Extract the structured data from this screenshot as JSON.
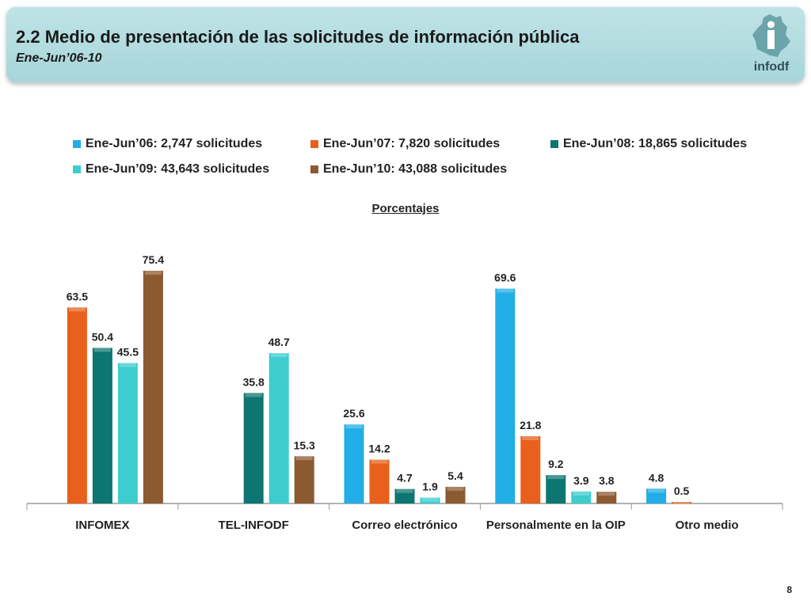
{
  "header": {
    "title": "2.2 Medio de presentación de las solicitudes de información pública",
    "subtitle": "Ene-Jun’06-10",
    "logo_text": "infodf"
  },
  "page_number": "8",
  "chart_data": {
    "type": "bar",
    "title": "Porcentajes",
    "xlabel": "",
    "ylabel": "",
    "ylim": [
      0,
      80
    ],
    "grid": false,
    "legend_position": "top",
    "categories": [
      "INFOMEX",
      "TEL-INFODF",
      "Correo electrónico",
      "Personalmente en la OIP",
      "Otro medio"
    ],
    "series": [
      {
        "name": "Ene-Jun’06: 2,747 solicitudes",
        "color": "#21aee6",
        "values": [
          null,
          null,
          25.6,
          69.6,
          4.8
        ]
      },
      {
        "name": "Ene-Jun’07: 7,820 solicitudes",
        "color": "#e8601c",
        "values": [
          63.5,
          null,
          14.2,
          21.8,
          0.5
        ]
      },
      {
        "name": "Ene-Jun’08: 18,865 solicitudes",
        "color": "#0e7672",
        "values": [
          50.4,
          35.8,
          4.7,
          9.2,
          null
        ]
      },
      {
        "name": "Ene-Jun’09: 43,643 solicitudes",
        "color": "#3dcdcf",
        "values": [
          45.5,
          48.7,
          1.9,
          3.9,
          null
        ]
      },
      {
        "name": "Ene-Jun’10: 43,088 solicitudes",
        "color": "#8c5a30",
        "values": [
          75.4,
          15.3,
          5.4,
          3.8,
          null
        ]
      }
    ]
  }
}
